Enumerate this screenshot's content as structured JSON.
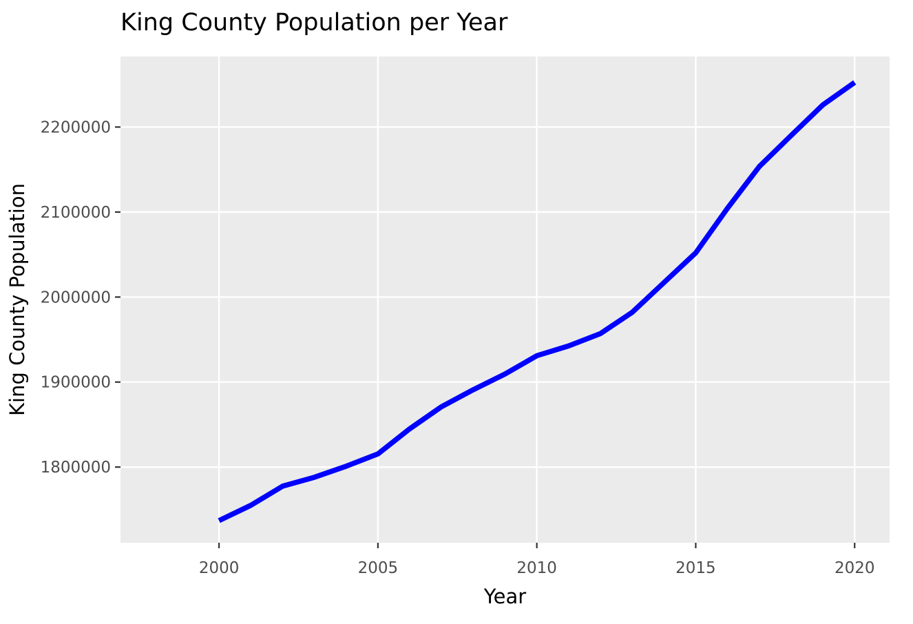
{
  "chart_data": {
    "type": "line",
    "title": "King County Population per Year",
    "xlabel": "Year",
    "ylabel": "King County Population",
    "xlim": [
      1996.9,
      2021.1
    ],
    "ylim": [
      1711000,
      2283000
    ],
    "x_ticks": [
      2000,
      2005,
      2010,
      2015,
      2020
    ],
    "x_tick_labels": [
      "2000",
      "2005",
      "2010",
      "2015",
      "2020"
    ],
    "y_ticks": [
      1800000,
      1900000,
      2000000,
      2100000,
      2200000
    ],
    "y_tick_labels": [
      "1800000",
      "1900000",
      "2000000",
      "2100000",
      "2200000"
    ],
    "grid": true,
    "legend": "none",
    "colors": {
      "panel_background": "#ebebeb",
      "grid": "#ffffff",
      "line": "#0000ff"
    },
    "series": [
      {
        "x": [
          2000,
          2001,
          2002,
          2003,
          2004,
          2005,
          2006,
          2007,
          2008,
          2009,
          2010,
          2011,
          2012,
          2013,
          2014,
          2015,
          2016,
          2017,
          2018,
          2019,
          2020
        ],
        "values": [
          1737000,
          1755000,
          1777500,
          1788000,
          1801000,
          1815500,
          1845000,
          1871000,
          1891000,
          1909500,
          1931000,
          1942500,
          1957000,
          1982000,
          2017000,
          2052000,
          2104500,
          2153500,
          2190000,
          2226000,
          2252500
        ]
      }
    ]
  }
}
